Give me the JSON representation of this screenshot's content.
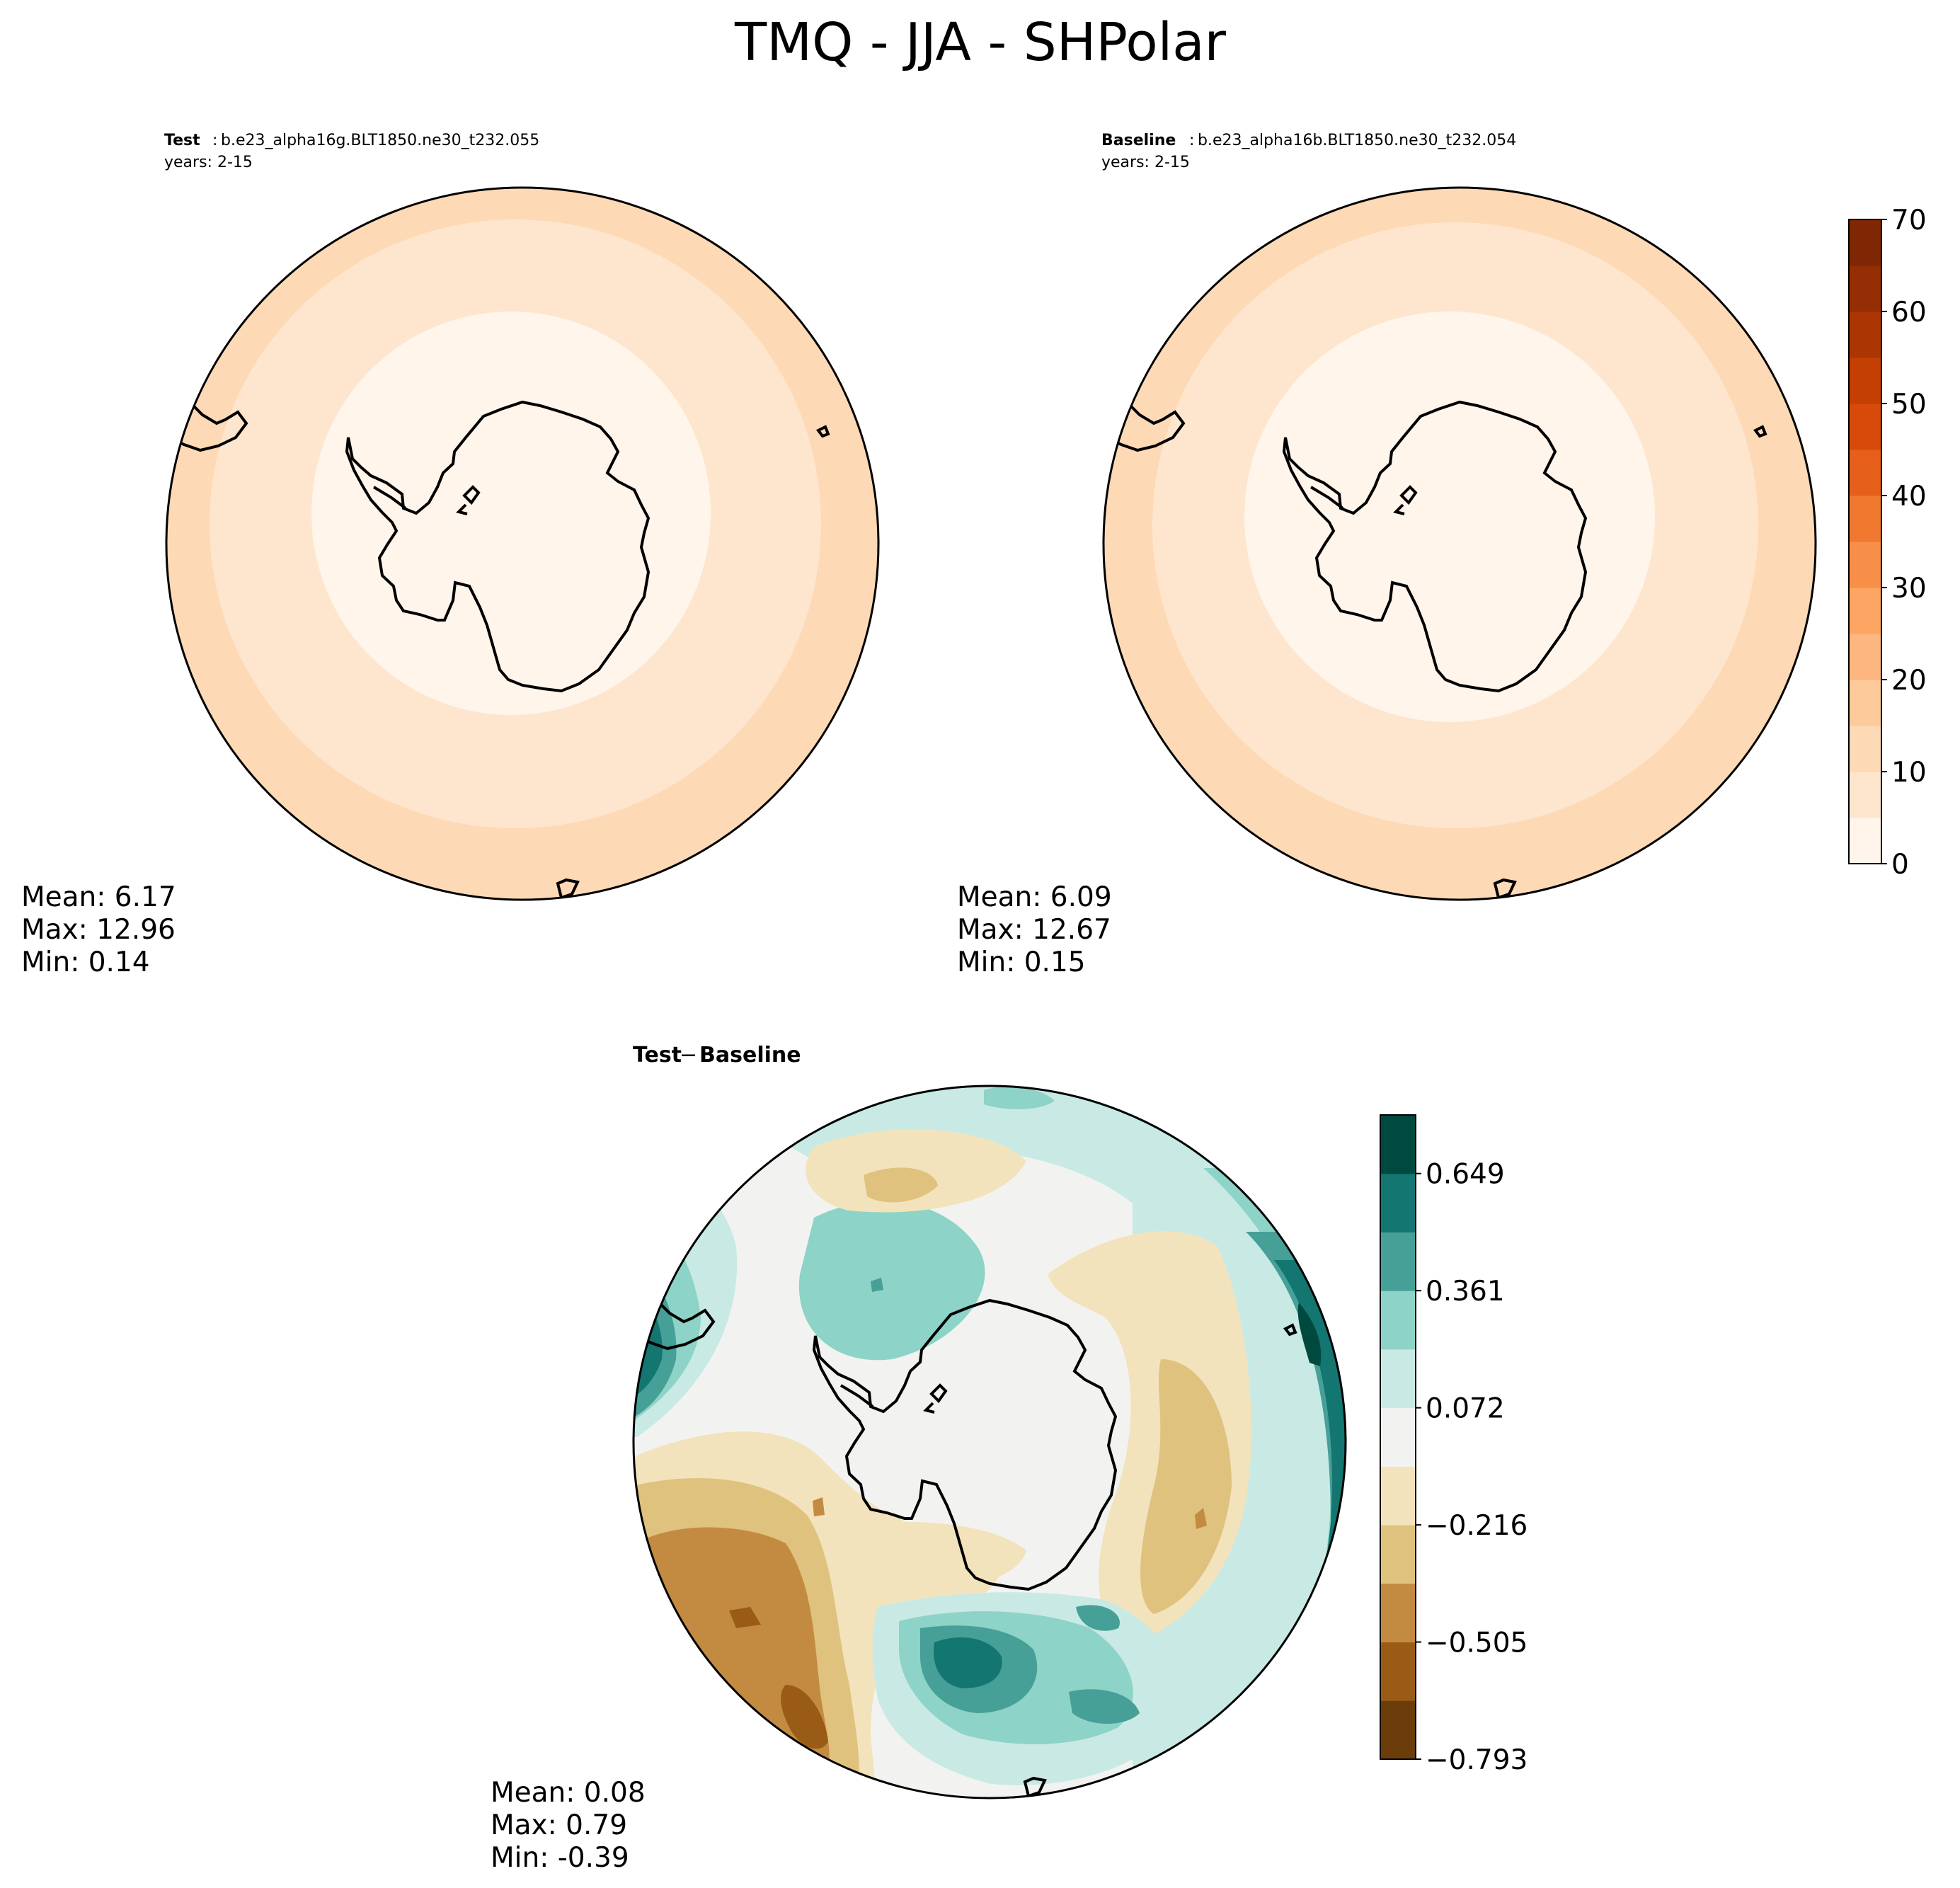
{
  "figure": {
    "title": "TMQ - JJA - SHPolar"
  },
  "panels": {
    "test": {
      "label": "Test",
      "case": "b.e23_alpha16g.BLT1850.ne30_t232.055",
      "years": "years: 2-15",
      "stats": {
        "mean": "Mean:  6.17",
        "max": "Max: 12.96",
        "min": "Min:  0.14"
      }
    },
    "baseline": {
      "label": "Baseline",
      "case": "b.e23_alpha16b.BLT1850.ne30_t232.054",
      "years": "years: 2-15",
      "stats": {
        "mean": "Mean:  6.09",
        "max": "Max: 12.67",
        "min": "Min:  0.15"
      }
    },
    "diff": {
      "label_test": "Test",
      "label_minus": "−",
      "label_baseline": "Baseline",
      "stats": {
        "mean": "Mean:  0.08",
        "max": "Max:  0.79",
        "min": "Min: -0.39"
      }
    }
  },
  "colorbars": {
    "main": {
      "ticks": [
        "0",
        "10",
        "20",
        "30",
        "40",
        "50",
        "60",
        "70"
      ],
      "levels": [
        0,
        5,
        10,
        15,
        20,
        25,
        30,
        35,
        40,
        45,
        50,
        55,
        60,
        65,
        70
      ],
      "colors": [
        "#fff5eb",
        "#fee6ce",
        "#fdd9b5",
        "#fdcb9b",
        "#fdb67f",
        "#fda563",
        "#f88f49",
        "#f1782f",
        "#e65f1b",
        "#d84a09",
        "#c43f02",
        "#ac3603",
        "#962e05",
        "#7f2704"
      ]
    },
    "diff": {
      "ticks": [
        "−0.793",
        "−0.505",
        "−0.216",
        "0.072",
        "0.361",
        "0.649"
      ],
      "levels": [
        -0.793,
        -0.649,
        -0.505,
        -0.361,
        -0.216,
        -0.072,
        0.072,
        0.216,
        0.361,
        0.505,
        0.649,
        0.793
      ],
      "colors": [
        "#6b3d0a",
        "#9a5b17",
        "#c38b41",
        "#dfc27d",
        "#f3e3bc",
        "#f2f3f1",
        "#c9eae4",
        "#8ed3c7",
        "#46a097",
        "#137670",
        "#00493f"
      ]
    }
  },
  "fields": {
    "test_rings": [
      {
        "value": 12.5,
        "color": "#fdd9b5"
      },
      {
        "value": 7.5,
        "color": "#fee6ce"
      },
      {
        "value": 2.5,
        "color": "#fff5eb"
      }
    ],
    "baseline_rings": [
      {
        "value": 12.5,
        "color": "#fdd9b5"
      },
      {
        "value": 7.5,
        "color": "#fee6ce"
      },
      {
        "value": 2.5,
        "color": "#fff5eb"
      }
    ]
  }
}
